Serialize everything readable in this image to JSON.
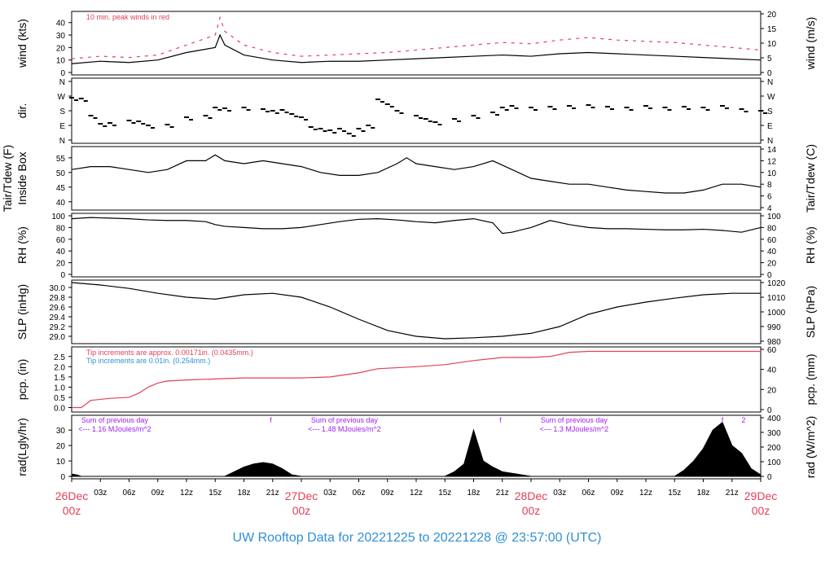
{
  "title": "UW Rooftop Data for 20221225  to  20221228 @ 23:57:00  (UTC)",
  "colors": {
    "peak": "#e0415a",
    "fine_tip": "#2f8fd8",
    "solar_note": "#a020f0",
    "title": "#2f8fd8",
    "day_label": "#e0415a",
    "series": "#000000"
  },
  "x_axis": {
    "hour_ticks": [
      "03z",
      "06z",
      "09z",
      "12z",
      "15z",
      "18z",
      "21z",
      "03z",
      "06z",
      "09z",
      "12z",
      "15z",
      "18z",
      "21z",
      "03z",
      "06z",
      "09z",
      "12z",
      "15z",
      "18z",
      "21z"
    ],
    "day_labels": [
      {
        "hours": 0,
        "date": "26Dec",
        "time": "00z"
      },
      {
        "hours": 24,
        "date": "27Dec",
        "time": "00z"
      },
      {
        "hours": 48,
        "date": "28Dec",
        "time": "00z"
      },
      {
        "hours": 72,
        "date": "29Dec",
        "time": "00z"
      }
    ]
  },
  "chart_data": [
    {
      "type": "line",
      "panel": "wind",
      "ylabel": "wind (kts)",
      "ylabel_right": "wind (m/s)",
      "ylim": [
        0,
        47
      ],
      "yticks": [
        0,
        10,
        20,
        30,
        40
      ],
      "right_ticks": [
        "0",
        "5",
        "10",
        "15",
        "20"
      ],
      "annotation": "10 min. peak winds in red",
      "series": [
        {
          "x": [
            0,
            3,
            6,
            9,
            12,
            15,
            15.5,
            16,
            18,
            21,
            24,
            27,
            30,
            33,
            36,
            39,
            42,
            45,
            48,
            51,
            54,
            57,
            60,
            63,
            66,
            69,
            72
          ],
          "values": [
            7,
            9,
            8,
            10,
            16,
            20,
            30,
            22,
            14,
            10,
            8,
            9,
            9,
            10,
            11,
            12,
            13,
            14,
            13,
            15,
            16,
            15,
            14,
            13,
            12,
            11,
            10
          ]
        },
        {
          "x": [
            0,
            3,
            6,
            9,
            12,
            15,
            15.5,
            16,
            18,
            21,
            24,
            27,
            30,
            33,
            36,
            39,
            42,
            45,
            48,
            51,
            54,
            57,
            60,
            63,
            66,
            69,
            72
          ],
          "values": [
            11,
            13,
            12,
            14,
            22,
            30,
            44,
            33,
            22,
            16,
            13,
            14,
            15,
            16,
            18,
            20,
            22,
            24,
            23,
            26,
            28,
            26,
            25,
            24,
            22,
            20,
            18
          ]
        }
      ]
    },
    {
      "type": "scatter",
      "panel": "dir.",
      "ylabel": "dir.",
      "yticks": [
        "N",
        "E",
        "S",
        "W",
        "N"
      ],
      "values_deg": {
        "x": [
          0,
          1,
          2,
          3,
          4,
          6,
          7,
          8,
          10,
          12,
          14,
          15,
          16,
          18,
          20,
          21,
          22,
          23,
          24,
          25,
          26,
          27,
          28,
          29,
          30,
          31,
          32,
          33,
          34,
          36,
          37,
          38,
          40,
          42,
          44,
          45,
          46,
          48,
          50,
          52,
          54,
          56,
          58,
          60,
          62,
          64,
          66,
          68,
          70,
          72
        ],
        "y": [
          260,
          255,
          150,
          100,
          105,
          120,
          115,
          90,
          95,
          140,
          150,
          200,
          195,
          200,
          190,
          180,
          185,
          160,
          140,
          80,
          70,
          60,
          70,
          40,
          70,
          90,
          250,
          220,
          180,
          150,
          130,
          110,
          130,
          150,
          170,
          200,
          210,
          200,
          205,
          210,
          215,
          205,
          200,
          210,
          200,
          205,
          200,
          210,
          190,
          180
        ]
      }
    },
    {
      "type": "line",
      "panel": "Tair/Tdew",
      "ylabel": "Tair/Tdew (F)",
      "ylabel2": "Inside Box",
      "ylabel_right": "Tair/Tdew (C)",
      "ylim": [
        38,
        58
      ],
      "yticks": [
        40,
        45,
        50,
        55
      ],
      "right_ticks": [
        "4",
        "6",
        "8",
        "10",
        "12",
        "14"
      ],
      "series": [
        {
          "x": [
            0,
            2,
            4,
            6,
            8,
            10,
            12,
            14,
            15,
            16,
            18,
            20,
            22,
            24,
            26,
            28,
            30,
            32,
            34,
            35,
            36,
            38,
            40,
            42,
            44,
            46,
            48,
            50,
            52,
            54,
            56,
            58,
            60,
            62,
            64,
            66,
            68,
            70,
            72
          ],
          "values": [
            51,
            52,
            52,
            51,
            50,
            51,
            54,
            54,
            56,
            54,
            53,
            54,
            53,
            52,
            50,
            49,
            49,
            50,
            53,
            55,
            53,
            52,
            51,
            52,
            54,
            51,
            48,
            47,
            46,
            46,
            45,
            44,
            43.5,
            43,
            43,
            44,
            46,
            46,
            45
          ]
        }
      ]
    },
    {
      "type": "line",
      "panel": "RH",
      "ylabel": "RH (%)",
      "ylabel_right": "RH (%)",
      "ylim": [
        0,
        100
      ],
      "yticks": [
        0,
        20,
        40,
        60,
        80,
        100
      ],
      "series": [
        {
          "x": [
            0,
            2,
            4,
            6,
            8,
            10,
            12,
            14,
            15,
            16,
            18,
            20,
            22,
            24,
            26,
            28,
            30,
            32,
            34,
            36,
            38,
            40,
            42,
            44,
            45,
            46,
            48,
            50,
            52,
            54,
            56,
            58,
            60,
            62,
            64,
            66,
            68,
            70,
            72
          ],
          "values": [
            95,
            97,
            96,
            95,
            93,
            92,
            92,
            90,
            85,
            82,
            80,
            78,
            78,
            80,
            85,
            90,
            94,
            95,
            93,
            90,
            88,
            92,
            95,
            88,
            70,
            72,
            80,
            92,
            85,
            80,
            78,
            78,
            77,
            76,
            76,
            77,
            75,
            72,
            80
          ]
        }
      ]
    },
    {
      "type": "line",
      "panel": "SLP",
      "ylabel": "SLP (inHg)",
      "ylabel_right": "SLP (hPa)",
      "ylim": [
        28.9,
        30.1
      ],
      "yticks": [
        29.0,
        29.2,
        29.4,
        29.6,
        29.8,
        30.0
      ],
      "right_ticks": [
        "980",
        "990",
        "1000",
        "1010",
        "1020"
      ],
      "series": [
        {
          "x": [
            0,
            3,
            6,
            9,
            12,
            15,
            18,
            21,
            24,
            27,
            30,
            33,
            36,
            39,
            42,
            45,
            48,
            51,
            54,
            57,
            60,
            63,
            66,
            69,
            72
          ],
          "values": [
            30.1,
            30.05,
            29.98,
            29.88,
            29.8,
            29.76,
            29.85,
            29.88,
            29.8,
            29.6,
            29.35,
            29.12,
            29.0,
            28.95,
            28.97,
            29.0,
            29.06,
            29.2,
            29.45,
            29.6,
            29.7,
            29.78,
            29.85,
            29.88,
            29.88
          ]
        }
      ]
    },
    {
      "type": "line",
      "panel": "pcp",
      "ylabel": "pcp. (in)",
      "ylabel_right": "pcp. (mm)",
      "ylim": [
        -0.1,
        2.85
      ],
      "yticks": [
        0.0,
        0.5,
        1.0,
        1.5,
        2.0,
        2.5
      ],
      "right_ticks": [
        "0",
        "20",
        "40",
        "60"
      ],
      "annotations": [
        "Tip increments are approx. 0.00171in. (0.0435mm.)",
        "Tip increments are 0.01in. (0.254mm.)"
      ],
      "series": [
        {
          "x": [
            0,
            1,
            2,
            4,
            6,
            7,
            8,
            9,
            10,
            12,
            15,
            18,
            21,
            24,
            27,
            30,
            32,
            36,
            39,
            42,
            45,
            48,
            50,
            52,
            54,
            56,
            60,
            64,
            68,
            72
          ],
          "values": [
            0,
            0,
            0.35,
            0.45,
            0.5,
            0.7,
            1.0,
            1.2,
            1.3,
            1.35,
            1.4,
            1.45,
            1.45,
            1.45,
            1.5,
            1.7,
            1.9,
            2.0,
            2.1,
            2.3,
            2.45,
            2.45,
            2.5,
            2.7,
            2.75,
            2.75,
            2.75,
            2.75,
            2.75,
            2.75
          ]
        }
      ]
    },
    {
      "type": "area",
      "panel": "rad",
      "ylabel": "rad(Lgly/hr)",
      "ylabel_right": "rad (W/m^2)",
      "ylim": [
        0,
        38
      ],
      "yticks": [
        0,
        10,
        20,
        30
      ],
      "right_ticks": [
        "0",
        "100",
        "200",
        "300",
        "400"
      ],
      "daily_notes": [
        {
          "hours": 4.5,
          "line1": "Sum of previous day",
          "line2": "<--- 1.16 MJoules/m^2"
        },
        {
          "hours": 28.5,
          "line1": "Sum of previous day",
          "line2": "<--- 1.48 MJoules/m^2"
        },
        {
          "hours": 52.5,
          "line1": "Sum of previous day",
          "line2": "<--- 1.3 MJoules/m^2"
        }
      ],
      "markers": [
        {
          "hours": 20.8,
          "text": "f"
        },
        {
          "hours": 44.8,
          "text": "f"
        },
        {
          "hours": 68.0,
          "text": "f"
        },
        {
          "hours": 70.2,
          "text": "2"
        }
      ],
      "series": [
        {
          "x": [
            0,
            0.5,
            1,
            16,
            17,
            18,
            19,
            20,
            21,
            22,
            23,
            24,
            39,
            40,
            41,
            42,
            43,
            44,
            45,
            46,
            47,
            48,
            63,
            64,
            65,
            66,
            67,
            68,
            69,
            70,
            71,
            72
          ],
          "values": [
            1.5,
            1.0,
            0,
            0,
            3,
            6,
            8,
            9,
            8,
            5,
            1,
            0,
            0,
            3,
            8,
            30,
            10,
            6,
            3,
            2,
            1,
            0,
            0,
            4,
            10,
            18,
            30,
            35,
            20,
            15,
            5,
            1
          ]
        }
      ]
    }
  ]
}
